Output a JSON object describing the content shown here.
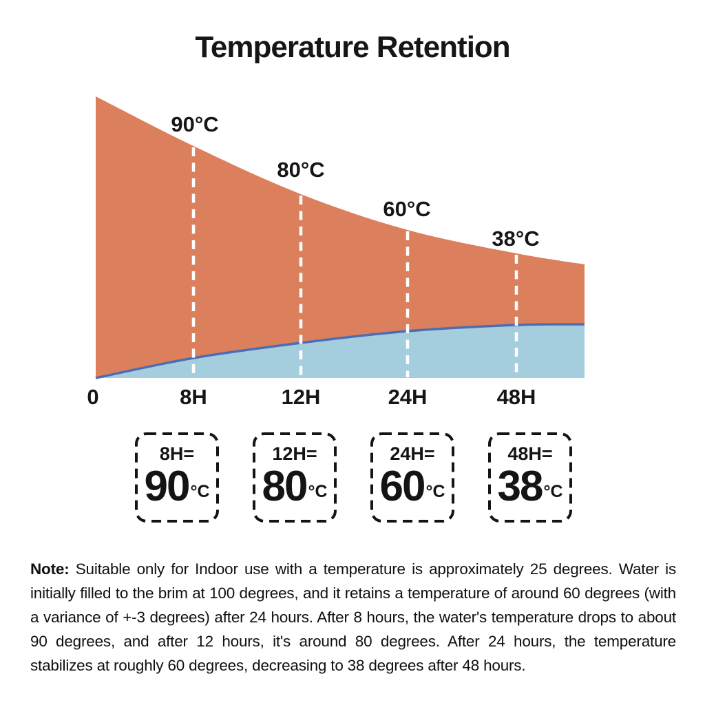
{
  "title": "Temperature Retention",
  "chart_data": {
    "type": "area",
    "title": "Temperature Retention",
    "x_tick_labels": [
      "0",
      "8H",
      "12H",
      "24H",
      "48H"
    ],
    "hours": [
      0,
      8,
      12,
      24,
      48
    ],
    "series": [
      {
        "name": "water temperature",
        "unit": "°C",
        "values": [
          100,
          90,
          80,
          60,
          38
        ]
      }
    ],
    "annotations": [
      {
        "x": "8H",
        "text": "90°C"
      },
      {
        "x": "12H",
        "text": "80°C"
      },
      {
        "x": "24H",
        "text": "60°C"
      },
      {
        "x": "48H",
        "text": "38°C"
      }
    ],
    "legend": "none",
    "gridlines": "dashed white vertical lines at 8H, 12H, 24H, 48H",
    "colors": {
      "hot_area": "#DC7F5D",
      "cool_area": "#A4CDDE",
      "boundary_line": "#4D6DB3",
      "tick_gridlines": "#FFFFFF",
      "text": "#161616"
    }
  },
  "callouts": [
    {
      "label": "8H=",
      "value": "90",
      "unit": "°C"
    },
    {
      "label": "12H=",
      "value": "80",
      "unit": "°C"
    },
    {
      "label": "24H=",
      "value": "60",
      "unit": "°C"
    },
    {
      "label": "48H=",
      "value": "38",
      "unit": "°C"
    }
  ],
  "note": {
    "label": "Note:",
    "body": "Suitable only for Indoor use with a temperature is approximately 25 degrees. Water is initially filled to the brim at 100 degrees, and it retains a temperature of around 60 degrees (with a variance of +-3 degrees) after 24 hours. After 8 hours, the water's temperature drops to about 90 degrees, and after 12 hours, it's around 80 degrees. After 24 hours, the temperature stabilizes at roughly 60 degrees, decreasing to 38 degrees after 48 hours."
  }
}
